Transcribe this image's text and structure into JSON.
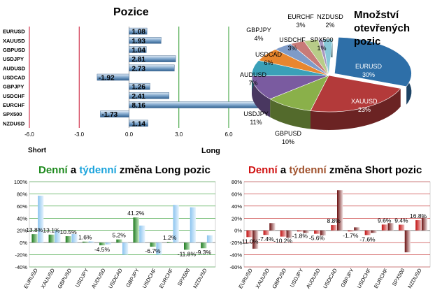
{
  "colors": {
    "green": "#1e8a1e",
    "cyan": "#1aa3dc",
    "red": "#d01010",
    "brown": "#a0522d",
    "grid_green": "#2e9b2e",
    "grid_red": "#c02020"
  },
  "chart_data": [
    {
      "type": "bar",
      "orientation": "horizontal",
      "title": "Pozice",
      "categories": [
        "EURUSD",
        "XAUUSD",
        "GBPUSD",
        "USDJPY",
        "AUDUSD",
        "USDCAD",
        "GBPJPY",
        "USDCHF",
        "EURCHF",
        "SPX500",
        "NZDUSD"
      ],
      "values": [
        1.08,
        1.93,
        1.04,
        2.81,
        2.73,
        -1.92,
        1.26,
        2.41,
        8.16,
        -1.73,
        1.14
      ],
      "value_labels": [
        "1.08",
        "1.93",
        "1.04",
        "2.81",
        "2.73",
        "-1.92",
        "1.26",
        "2.41",
        "8.16",
        "-1.73",
        "1.14"
      ],
      "xlim": [
        -6,
        6
      ],
      "xticks": [
        -6,
        -3,
        0,
        3,
        6
      ],
      "xtick_labels": [
        "-6.0",
        "-3.0",
        "0.0",
        "3.0",
        "6.0"
      ],
      "short_label": "Short",
      "long_label": "Long"
    },
    {
      "type": "pie",
      "title_lines": [
        "Množství",
        "otevřených",
        "pozic"
      ],
      "slices": [
        {
          "label": "EURUSD",
          "pct": "30%",
          "value": 30,
          "color": "#2e6fa8"
        },
        {
          "label": "XAUUSD",
          "pct": "23%",
          "value": 23,
          "color": "#b33a3a"
        },
        {
          "label": "GBPUSD",
          "pct": "10%",
          "value": 10,
          "color": "#8ab04a"
        },
        {
          "label": "USDJPY",
          "pct": "11%",
          "value": 11,
          "color": "#7a5ba0"
        },
        {
          "label": "AUDUSD",
          "pct": "7%",
          "value": 7,
          "color": "#3aa0b8"
        },
        {
          "label": "USDCAD",
          "pct": "6%",
          "value": 6,
          "color": "#e8862e"
        },
        {
          "label": "GBPJPY",
          "pct": "4%",
          "value": 4,
          "color": "#7e9bc8"
        },
        {
          "label": "USDCHF",
          "pct": "3%",
          "value": 3,
          "color": "#c87a78"
        },
        {
          "label": "EURCHF",
          "pct": "3%",
          "value": 3,
          "color": "#b8cc88"
        },
        {
          "label": "SPX500",
          "pct": "1%",
          "value": 1,
          "color": "#a898c0"
        },
        {
          "label": "NZDUSD",
          "pct": "2%",
          "value": 2,
          "color": "#88c8d8"
        }
      ]
    },
    {
      "type": "bar",
      "title_parts": [
        "Denní",
        " a ",
        "týdenní",
        " změna Long pozic"
      ],
      "categories": [
        "EURUSD",
        "XAUUSD",
        "GBPUSD",
        "USDJPY",
        "AUDUSD",
        "USDCAD",
        "GBPJPY",
        "USDCHF",
        "EURCHF",
        "SPX500",
        "NZDUSD"
      ],
      "series": [
        {
          "name": "Denní",
          "values": [
            13.8,
            13.1,
            10.5,
            1.6,
            -4.5,
            5.2,
            41.2,
            -6.7,
            1.2,
            -11.8,
            -9.3
          ]
        },
        {
          "name": "týdenní",
          "values": [
            77,
            20,
            14,
            2,
            -3,
            -20,
            28,
            -20,
            62,
            58,
            12
          ]
        }
      ],
      "data_labels": [
        "13.8%",
        "13.1%",
        "10.5%",
        "1.6%",
        "-4.5%",
        "5.2%",
        "41.2%",
        "-6.7%",
        "1.2%",
        "-11.8%",
        "-9.3%"
      ],
      "ylim": [
        -40,
        100
      ],
      "yticks": [
        100,
        80,
        60,
        40,
        20,
        0,
        -20,
        -40
      ],
      "ytick_labels": [
        "100%",
        "80%",
        "60%",
        "40%",
        "20%",
        "0%",
        "-20%",
        "-40%"
      ]
    },
    {
      "type": "bar",
      "title_parts": [
        "Denní",
        " a ",
        "týdenní",
        " změna Short pozic"
      ],
      "categories": [
        "EURUSD",
        "XAUUSD",
        "GBPUSD",
        "USDJPY",
        "AUDUSD",
        "USDCAD",
        "GBPJPY",
        "USDCHF",
        "EURCHF",
        "SPX500",
        "NZDUSD"
      ],
      "series": [
        {
          "name": "Denní",
          "values": [
            -11.0,
            -7.4,
            -10.2,
            -1.8,
            -5.6,
            8.8,
            -1.7,
            -7.6,
            9.6,
            9.4,
            16.8
          ]
        },
        {
          "name": "týdenní",
          "values": [
            -30,
            12,
            -12,
            -4,
            -8,
            66,
            5,
            -4,
            12,
            -36,
            21
          ]
        }
      ],
      "data_labels": [
        "-11.0%",
        "-7.4%",
        "-10.2%",
        "-1.8%",
        "-5.6%",
        "8.8%",
        "-1.7%",
        "-7.6%",
        "9.6%",
        "9.4%",
        "16.8%"
      ],
      "ylim": [
        -60,
        80
      ],
      "yticks": [
        80,
        60,
        40,
        20,
        0,
        -20,
        -40,
        -60
      ],
      "ytick_labels": [
        "80%",
        "60%",
        "40%",
        "20%",
        "0%",
        "-20%",
        "-40%",
        "-60%"
      ]
    }
  ]
}
